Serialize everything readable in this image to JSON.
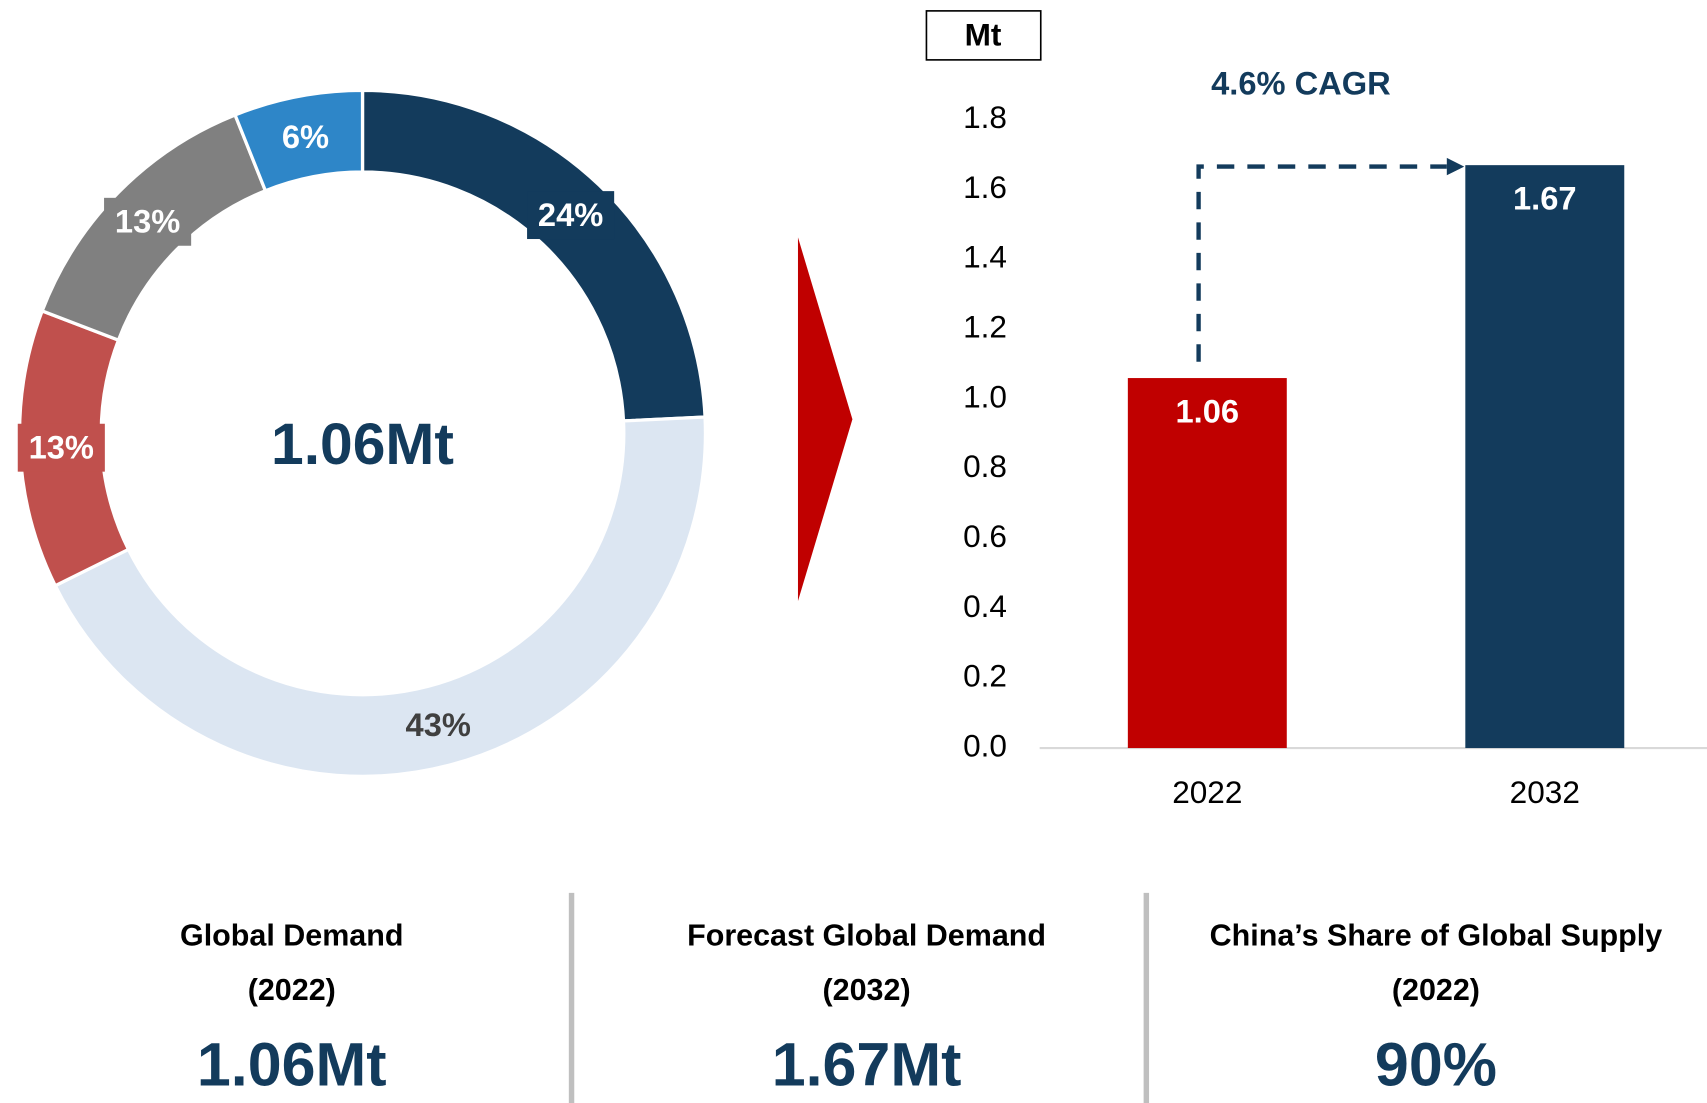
{
  "chart_data": [
    {
      "type": "pie",
      "center_label": "1.06Mt",
      "values": [
        24,
        43,
        13,
        13,
        6
      ],
      "value_labels": [
        "24%",
        "43%",
        "13%",
        "13%",
        "6%"
      ],
      "colors": [
        "#133b5c",
        "#dce6f2",
        "#c0504d",
        "#808080",
        "#2e86c8"
      ],
      "label_colors": [
        "#ffffff",
        "#404040",
        "#ffffff",
        "#ffffff",
        "#ffffff"
      ]
    },
    {
      "type": "bar",
      "y_unit_label": "Mt",
      "annotation": "4.6% CAGR",
      "categories": [
        "2022",
        "2032"
      ],
      "values": [
        1.06,
        1.67
      ],
      "colors": [
        "#c00000",
        "#133b5c"
      ],
      "ylim": [
        0,
        1.8
      ],
      "yticks": [
        {
          "value": 0,
          "label": "0.0"
        },
        {
          "value": 0.2,
          "label": "0.2"
        },
        {
          "value": 0.4,
          "label": "0.4"
        },
        {
          "value": 0.6,
          "label": "0.6"
        },
        {
          "value": 0.8,
          "label": "0.8"
        },
        {
          "value": 1,
          "label": "1.0"
        },
        {
          "value": 1.2,
          "label": "1.2"
        },
        {
          "value": 1.4,
          "label": "1.4"
        },
        {
          "value": 1.6,
          "label": "1.6"
        },
        {
          "value": 1.8,
          "label": "1.8"
        }
      ]
    }
  ],
  "stats": [
    {
      "title": "Global Demand",
      "subtitle": "(2022)",
      "value": "1.06Mt"
    },
    {
      "title": "Forecast Global Demand",
      "subtitle": "(2032)",
      "value": "1.67Mt"
    },
    {
      "title": "China’s Share of Global Supply",
      "subtitle": "(2022)",
      "value": "90%"
    }
  ]
}
